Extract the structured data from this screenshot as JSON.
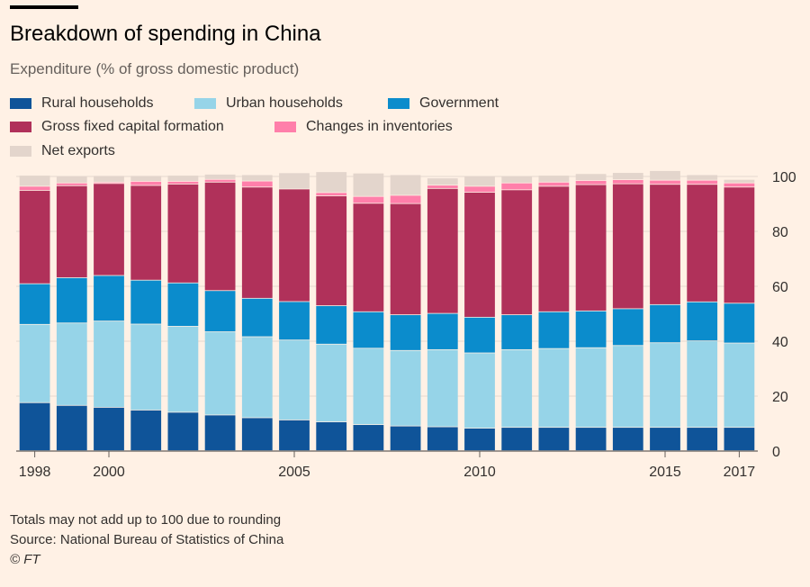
{
  "header": {
    "title": "Breakdown of spending in China",
    "subtitle": "Expenditure (% of gross domestic product)"
  },
  "legend": [
    {
      "label": "Rural households",
      "color": "#0f5499"
    },
    {
      "label": "Urban households",
      "color": "#96d4e8"
    },
    {
      "label": "Government",
      "color": "#0b8ccc"
    },
    {
      "label": "Gross fixed capital formation",
      "color": "#b0315a"
    },
    {
      "label": "Changes in inventories",
      "color": "#ff7faa"
    },
    {
      "label": "Net exports",
      "color": "#e3d5cc"
    }
  ],
  "footer": {
    "note": "Totals may not add up to 100 due to rounding",
    "source": "Source: National Bureau of Statistics of China",
    "credit": "© FT"
  },
  "chart_data": {
    "type": "bar",
    "stacked": true,
    "categories": [
      "1998",
      "1999",
      "2000",
      "2001",
      "2002",
      "2003",
      "2004",
      "2005",
      "2006",
      "2007",
      "2008",
      "2009",
      "2010",
      "2011",
      "2012",
      "2013",
      "2014",
      "2015",
      "2016",
      "2017"
    ],
    "x_tick_labels": [
      "1998",
      "2000",
      "2005",
      "2010",
      "2015",
      "2017"
    ],
    "ylim": [
      0,
      100
    ],
    "yticks": [
      0,
      20,
      40,
      60,
      80,
      100
    ],
    "axis_side": "right",
    "grid": true,
    "legend_position": "top",
    "series": [
      {
        "name": "Rural households",
        "color": "#0f5499",
        "values": [
          17.5,
          16.5,
          15.8,
          14.8,
          14.0,
          13.0,
          12.0,
          11.2,
          10.5,
          9.5,
          9.0,
          8.7,
          8.2,
          8.5,
          8.5,
          8.5,
          8.5,
          8.5,
          8.5,
          8.5
        ]
      },
      {
        "name": "Urban households",
        "color": "#96d4e8",
        "values": [
          28.5,
          30.0,
          31.4,
          31.3,
          31.3,
          30.3,
          29.5,
          29.1,
          28.3,
          27.8,
          27.5,
          28.1,
          27.4,
          28.3,
          28.7,
          29.0,
          29.8,
          30.8,
          31.5,
          30.7
        ]
      },
      {
        "name": "Government",
        "color": "#0b8ccc",
        "values": [
          14.8,
          16.5,
          16.6,
          16.0,
          15.8,
          15.0,
          14.0,
          14.0,
          14.0,
          13.3,
          13.0,
          13.2,
          13.0,
          12.7,
          13.4,
          13.4,
          13.4,
          13.9,
          14.2,
          14.5
        ]
      },
      {
        "name": "Gross fixed capital formation",
        "color": "#b0315a",
        "values": [
          34.0,
          33.5,
          33.5,
          34.5,
          36.0,
          39.5,
          40.5,
          41.0,
          40.0,
          39.5,
          40.5,
          45.5,
          45.5,
          45.5,
          45.7,
          46.0,
          45.5,
          43.8,
          42.8,
          42.3
        ]
      },
      {
        "name": "Changes in inventories",
        "color": "#ff7faa",
        "values": [
          1.5,
          1.0,
          0.5,
          1.5,
          1.0,
          1.0,
          2.2,
          0.0,
          1.2,
          2.5,
          3.0,
          1.2,
          2.2,
          2.5,
          1.5,
          1.5,
          1.5,
          1.5,
          1.5,
          1.5
        ]
      },
      {
        "name": "Net exports",
        "color": "#e3d5cc",
        "values": [
          4.0,
          2.5,
          2.4,
          2.1,
          2.2,
          1.9,
          2.3,
          5.9,
          7.6,
          8.5,
          7.5,
          2.6,
          3.7,
          2.5,
          2.5,
          2.5,
          2.6,
          3.5,
          2.0,
          1.3
        ]
      }
    ]
  }
}
